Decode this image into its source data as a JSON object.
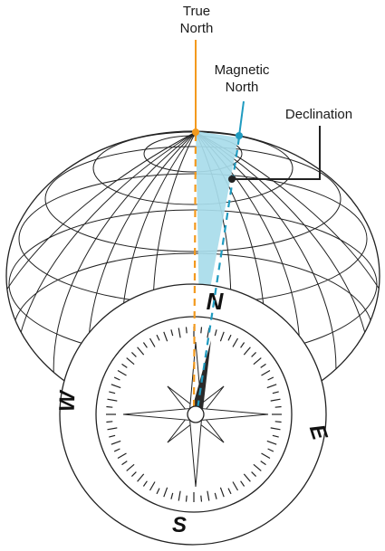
{
  "labels": {
    "true_north": [
      "True",
      "North"
    ],
    "magnetic_north": [
      "Magnetic",
      "North"
    ],
    "declination": "Declination"
  },
  "compass": {
    "cardinal": {
      "north": "N",
      "east": "E",
      "south": "S",
      "west": "W"
    }
  },
  "colors": {
    "true_north": "#f39a1e",
    "magnetic_north": "#1f9bc0",
    "declination_fill": "#a8dcea",
    "outline": "#222222"
  }
}
